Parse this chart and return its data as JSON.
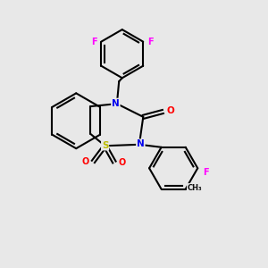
{
  "bg_color": "#e8e8e8",
  "bond_color": "#000000",
  "N_color": "#0000ee",
  "S_color": "#bbbb00",
  "O_color": "#ff0000",
  "F_color": "#ff00ff",
  "lw": 1.5,
  "xlim": [
    0,
    10
  ],
  "ylim": [
    0,
    10
  ]
}
